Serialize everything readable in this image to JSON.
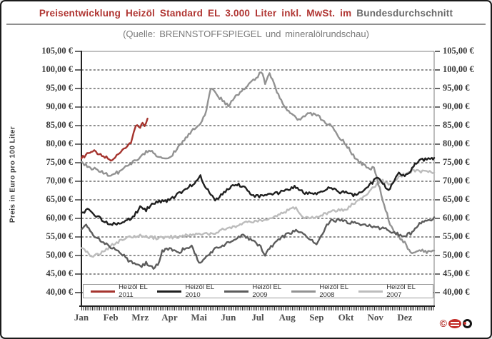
{
  "header": {
    "title_red": "Preisentwicklung Heizöl Standard EL 3.000 Liter inkl. MwSt. im",
    "title_dark": "Bundesdurchschnitt",
    "subtitle": "(Quelle: BRENNSTOFFSPIEGEL und mineralölrundschau)"
  },
  "logo": {
    "copyright_symbol": "©"
  },
  "colors": {
    "title_red": "#b03532",
    "title_gray": "#6a6a6a",
    "axis": "#222222",
    "gridline": "#4a4a4a",
    "plot_border": "#9a9a9a"
  },
  "chart_data": {
    "type": "line",
    "title": "Preisentwicklung Heizöl Standard EL 3.000 Liter inkl. MwSt. im Bundesdurchschnitt",
    "subtitle": "(Quelle: BRENNSTOFFSPIEGEL und mineralölrundschau)",
    "ylabel": "Preis in Euro pro 100 Liter",
    "ylim": [
      40,
      105
    ],
    "ytick_step": 5,
    "y_ticks_left": [
      "105,00 €",
      "100,00 €",
      "95,00 €",
      "90,00 €",
      "85,00 €",
      "80,00 €",
      "75,00 €",
      "70,00 €",
      "65,00 €",
      "60,00 €",
      "55,00 €",
      "50,00 €",
      "45,00 €",
      "40,00 €"
    ],
    "y_ticks_right": [
      "105,00 €",
      "100,00 €",
      "95,00 €",
      "90,00 €",
      "85,00 €",
      "80,00 €",
      "75,00 €",
      "70,00 €",
      "65,00 €",
      "60,00 €",
      "55,00 €",
      "50,00 €",
      "45,00 €",
      "40,00 €"
    ],
    "x_ticks": [
      "Jan",
      "Feb",
      "Mrz",
      "Apr",
      "Mai",
      "Jun",
      "Jul",
      "Aug",
      "Sep",
      "Okt",
      "Nov",
      "Dez"
    ],
    "x_unit": "months, 0 = 1 Jan, 12 = 31 Dec; values in EUR per 100 liters",
    "grid": "dashed-horizontal",
    "legend_position": "bottom-inside",
    "series": [
      {
        "name": "Heizöl EL 2007",
        "color": "#bcbcbc",
        "points": [
          [
            0,
            52.0
          ],
          [
            0.2,
            50.8
          ],
          [
            0.4,
            49.8
          ],
          [
            0.6,
            50.4
          ],
          [
            1.0,
            52.6
          ],
          [
            1.5,
            54.6
          ],
          [
            2.0,
            55.6
          ],
          [
            2.3,
            55.1
          ],
          [
            2.6,
            54.6
          ],
          [
            3.0,
            54.9
          ],
          [
            3.5,
            55.3
          ],
          [
            4.0,
            55.6
          ],
          [
            4.5,
            56.1
          ],
          [
            5.0,
            57.4
          ],
          [
            5.5,
            58.7
          ],
          [
            6.0,
            59.1
          ],
          [
            6.5,
            60.4
          ],
          [
            7.0,
            62.1
          ],
          [
            7.3,
            62.9
          ],
          [
            7.6,
            59.9
          ],
          [
            8.0,
            60.6
          ],
          [
            8.5,
            61.9
          ],
          [
            9.0,
            62.4
          ],
          [
            9.5,
            65.5
          ],
          [
            9.9,
            68.0
          ],
          [
            10.2,
            70.3
          ],
          [
            10.5,
            69.0
          ],
          [
            10.8,
            71.2
          ],
          [
            11.0,
            72.0
          ],
          [
            11.3,
            72.8
          ],
          [
            11.6,
            72.5
          ],
          [
            12,
            72.4
          ]
        ]
      },
      {
        "name": "Heizöl EL 2008",
        "color": "#929292",
        "points": [
          [
            0,
            75.3
          ],
          [
            0.25,
            73.8
          ],
          [
            0.5,
            73.2
          ],
          [
            0.75,
            72.2
          ],
          [
            1.0,
            71.5
          ],
          [
            1.3,
            72.6
          ],
          [
            1.5,
            73.8
          ],
          [
            1.75,
            75.0
          ],
          [
            2.0,
            76.5
          ],
          [
            2.3,
            78.5
          ],
          [
            2.55,
            77.0
          ],
          [
            2.8,
            75.8
          ],
          [
            3.0,
            76.2
          ],
          [
            3.3,
            79.5
          ],
          [
            3.5,
            81.0
          ],
          [
            3.8,
            84.0
          ],
          [
            4.05,
            85.2
          ],
          [
            4.25,
            89.0
          ],
          [
            4.4,
            95.3
          ],
          [
            4.6,
            93.3
          ],
          [
            5.0,
            90.2
          ],
          [
            5.25,
            93.0
          ],
          [
            5.5,
            94.7
          ],
          [
            5.75,
            96.5
          ],
          [
            6.0,
            98.4
          ],
          [
            6.12,
            99.6
          ],
          [
            6.25,
            96.6
          ],
          [
            6.4,
            99.4
          ],
          [
            6.6,
            95.0
          ],
          [
            6.8,
            91.5
          ],
          [
            7.0,
            89.4
          ],
          [
            7.35,
            86.4
          ],
          [
            7.65,
            88.1
          ],
          [
            8.05,
            87.9
          ],
          [
            8.3,
            85.6
          ],
          [
            8.5,
            84.9
          ],
          [
            8.7,
            82.4
          ],
          [
            9.0,
            80.0
          ],
          [
            9.3,
            76.3
          ],
          [
            9.5,
            75.0
          ],
          [
            9.75,
            73.3
          ],
          [
            9.95,
            73.8
          ],
          [
            10.2,
            66.5
          ],
          [
            10.5,
            58.5
          ],
          [
            10.7,
            55.6
          ],
          [
            11.0,
            53.4
          ],
          [
            11.25,
            50.4
          ],
          [
            11.5,
            51.3
          ],
          [
            11.75,
            51.0
          ],
          [
            12,
            51.3
          ]
        ]
      },
      {
        "name": "Heizöl EL 2009",
        "color": "#5c5c5c",
        "points": [
          [
            0,
            57.0
          ],
          [
            0.12,
            58.3
          ],
          [
            0.25,
            57.5
          ],
          [
            0.45,
            55.2
          ],
          [
            0.7,
            53.6
          ],
          [
            1.0,
            52.3
          ],
          [
            1.3,
            51.0
          ],
          [
            1.6,
            48.6
          ],
          [
            1.8,
            47.6
          ],
          [
            2.0,
            47.1
          ],
          [
            2.2,
            47.9
          ],
          [
            2.45,
            46.8
          ],
          [
            2.65,
            48.0
          ],
          [
            2.75,
            51.2
          ],
          [
            3.0,
            52.0
          ],
          [
            3.25,
            50.6
          ],
          [
            3.5,
            51.8
          ],
          [
            3.75,
            52.4
          ],
          [
            4.0,
            48.2
          ],
          [
            4.25,
            49.5
          ],
          [
            4.5,
            51.5
          ],
          [
            4.75,
            52.3
          ],
          [
            5.0,
            53.6
          ],
          [
            5.3,
            55.0
          ],
          [
            5.5,
            55.4
          ],
          [
            5.8,
            54.0
          ],
          [
            6.1,
            52.2
          ],
          [
            6.25,
            50.3
          ],
          [
            6.6,
            53.6
          ],
          [
            7.0,
            55.8
          ],
          [
            7.3,
            56.8
          ],
          [
            7.5,
            56.3
          ],
          [
            7.8,
            54.2
          ],
          [
            8.0,
            53.1
          ],
          [
            8.3,
            57.5
          ],
          [
            8.5,
            59.3
          ],
          [
            8.8,
            59.6
          ],
          [
            9.0,
            59.2
          ],
          [
            9.3,
            58.6
          ],
          [
            9.6,
            58.1
          ],
          [
            10.0,
            57.9
          ],
          [
            10.5,
            56.6
          ],
          [
            10.8,
            55.6
          ],
          [
            11.0,
            55.2
          ],
          [
            11.2,
            56.0
          ],
          [
            11.5,
            58.5
          ],
          [
            11.8,
            59.3
          ],
          [
            12,
            60.3
          ]
        ]
      },
      {
        "name": "Heizöl EL 2010",
        "color": "#1f1f1f",
        "points": [
          [
            0,
            61.5
          ],
          [
            0.2,
            62.3
          ],
          [
            0.45,
            60.9
          ],
          [
            0.7,
            59.6
          ],
          [
            1.0,
            58.4
          ],
          [
            1.25,
            58.5
          ],
          [
            1.5,
            59.3
          ],
          [
            1.75,
            60.4
          ],
          [
            2.0,
            62.9
          ],
          [
            2.2,
            62.3
          ],
          [
            2.5,
            64.3
          ],
          [
            3.0,
            64.9
          ],
          [
            3.3,
            66.8
          ],
          [
            3.5,
            67.4
          ],
          [
            3.75,
            69.0
          ],
          [
            4.05,
            71.2
          ],
          [
            4.3,
            67.5
          ],
          [
            4.55,
            64.9
          ],
          [
            4.8,
            66.5
          ],
          [
            5.0,
            68.0
          ],
          [
            5.3,
            69.2
          ],
          [
            5.5,
            68.7
          ],
          [
            5.8,
            66.0
          ],
          [
            6.1,
            65.9
          ],
          [
            6.5,
            66.4
          ],
          [
            7.0,
            67.6
          ],
          [
            7.25,
            68.6
          ],
          [
            7.5,
            67.2
          ],
          [
            7.8,
            66.5
          ],
          [
            8.0,
            66.9
          ],
          [
            8.5,
            68.3
          ],
          [
            8.8,
            67.0
          ],
          [
            9.0,
            67.1
          ],
          [
            9.3,
            66.2
          ],
          [
            9.75,
            68.4
          ],
          [
            10.1,
            71.3
          ],
          [
            10.35,
            68.2
          ],
          [
            10.5,
            68.0
          ],
          [
            10.8,
            72.5
          ],
          [
            11.0,
            71.3
          ],
          [
            11.25,
            73.5
          ],
          [
            11.5,
            75.7
          ],
          [
            11.75,
            75.8
          ],
          [
            11.92,
            76.0
          ],
          [
            12,
            76.3
          ]
        ]
      },
      {
        "name": "Heizöl EL 2011",
        "color": "#a5342e",
        "points": [
          [
            0,
            76.1
          ],
          [
            0.15,
            77.2
          ],
          [
            0.38,
            78.4
          ],
          [
            0.55,
            77.4
          ],
          [
            0.75,
            76.6
          ],
          [
            1.0,
            75.9
          ],
          [
            1.2,
            76.8
          ],
          [
            1.45,
            79.0
          ],
          [
            1.6,
            80.0
          ],
          [
            1.68,
            80.3
          ],
          [
            1.78,
            83.4
          ],
          [
            1.85,
            85.0
          ],
          [
            2.0,
            84.8
          ],
          [
            2.08,
            85.9
          ],
          [
            2.15,
            85.2
          ],
          [
            2.25,
            86.9
          ]
        ]
      }
    ],
    "legend_order": [
      "Heizöl EL 2011",
      "Heizöl EL 2010",
      "Heizöl EL 2009",
      "Heizöl EL 2008",
      "Heizöl EL 2007"
    ]
  }
}
